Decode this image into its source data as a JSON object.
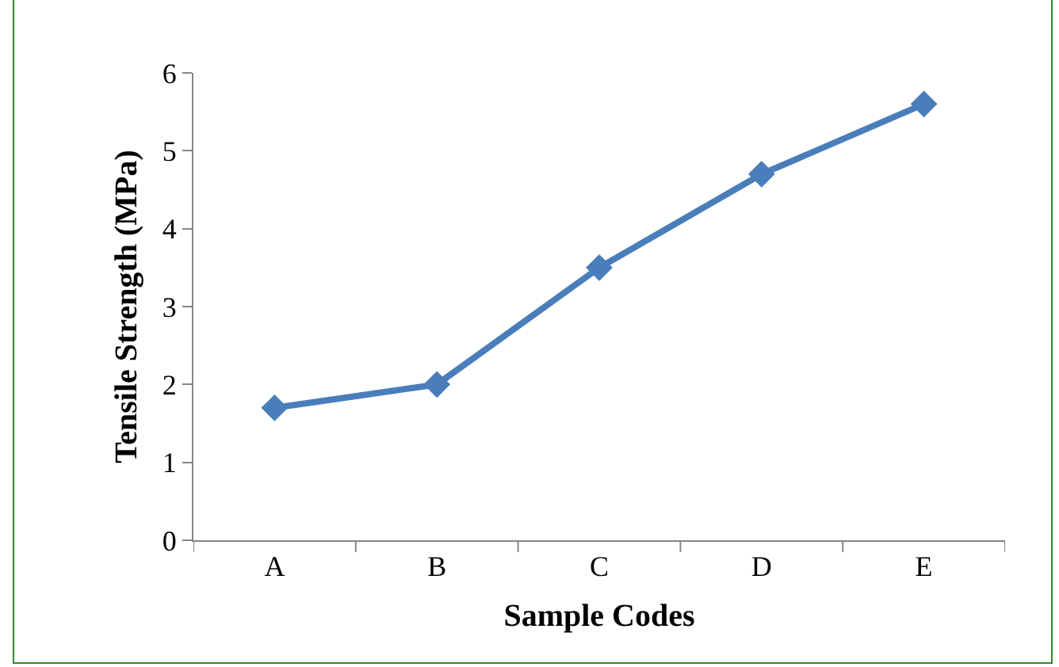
{
  "chart_data": {
    "type": "line",
    "xlabel": "Sample Codes",
    "ylabel": "Tensile Strength (MPa)",
    "categories": [
      "A",
      "B",
      "C",
      "D",
      "E"
    ],
    "series": [
      {
        "color": "#4a7ebb",
        "values": [
          1.7,
          2.0,
          3.5,
          4.7,
          5.6
        ]
      }
    ],
    "ylim": [
      0,
      6
    ],
    "yticks": [
      0,
      1,
      2,
      3,
      4,
      5,
      6
    ],
    "grid": false,
    "legend": false,
    "marker": "diamond",
    "line_style": "solid"
  }
}
